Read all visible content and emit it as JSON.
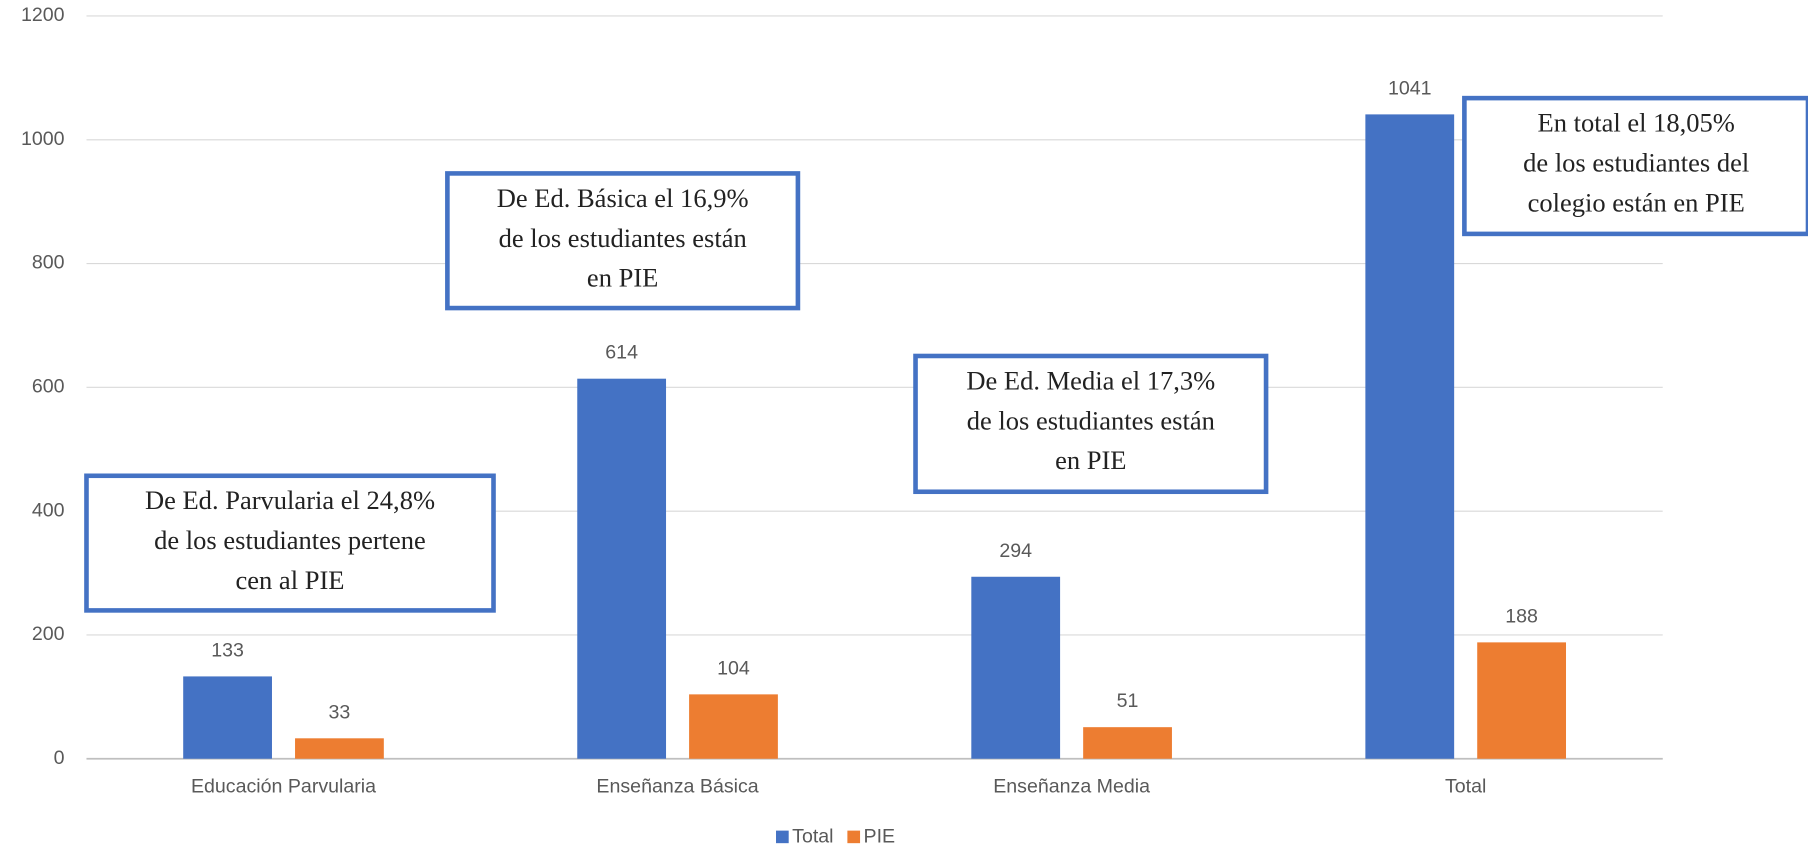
{
  "chart_data": {
    "type": "bar",
    "categories": [
      "Educación Parvularia",
      "Enseñanza Básica",
      "Enseñanza Media",
      "Total"
    ],
    "series": [
      {
        "name": "Total",
        "color": "#4472c4",
        "values": [
          133,
          614,
          294,
          1041
        ]
      },
      {
        "name": "PIE",
        "color": "#ed7d31",
        "values": [
          33,
          104,
          51,
          188
        ]
      }
    ],
    "ylim": [
      0,
      1200
    ],
    "yticks": [
      0,
      200,
      400,
      600,
      800,
      1000,
      1200
    ],
    "grid": true,
    "legend": "bottom",
    "annotations": [
      {
        "lines": [
          "De Ed. Parvularia el 24,8%",
          "de los estudiantes pertene",
          "cen al PIE"
        ]
      },
      {
        "lines": [
          "De Ed. Básica el 16,9%",
          "de los estudiantes están",
          "en PIE"
        ]
      },
      {
        "lines": [
          "De Ed. Media el 17,3%",
          "de los estudiantes están",
          "en PIE"
        ]
      },
      {
        "lines": [
          "En total el 18,05%",
          "de los estudiantes del",
          "colegio están en PIE"
        ]
      }
    ]
  }
}
